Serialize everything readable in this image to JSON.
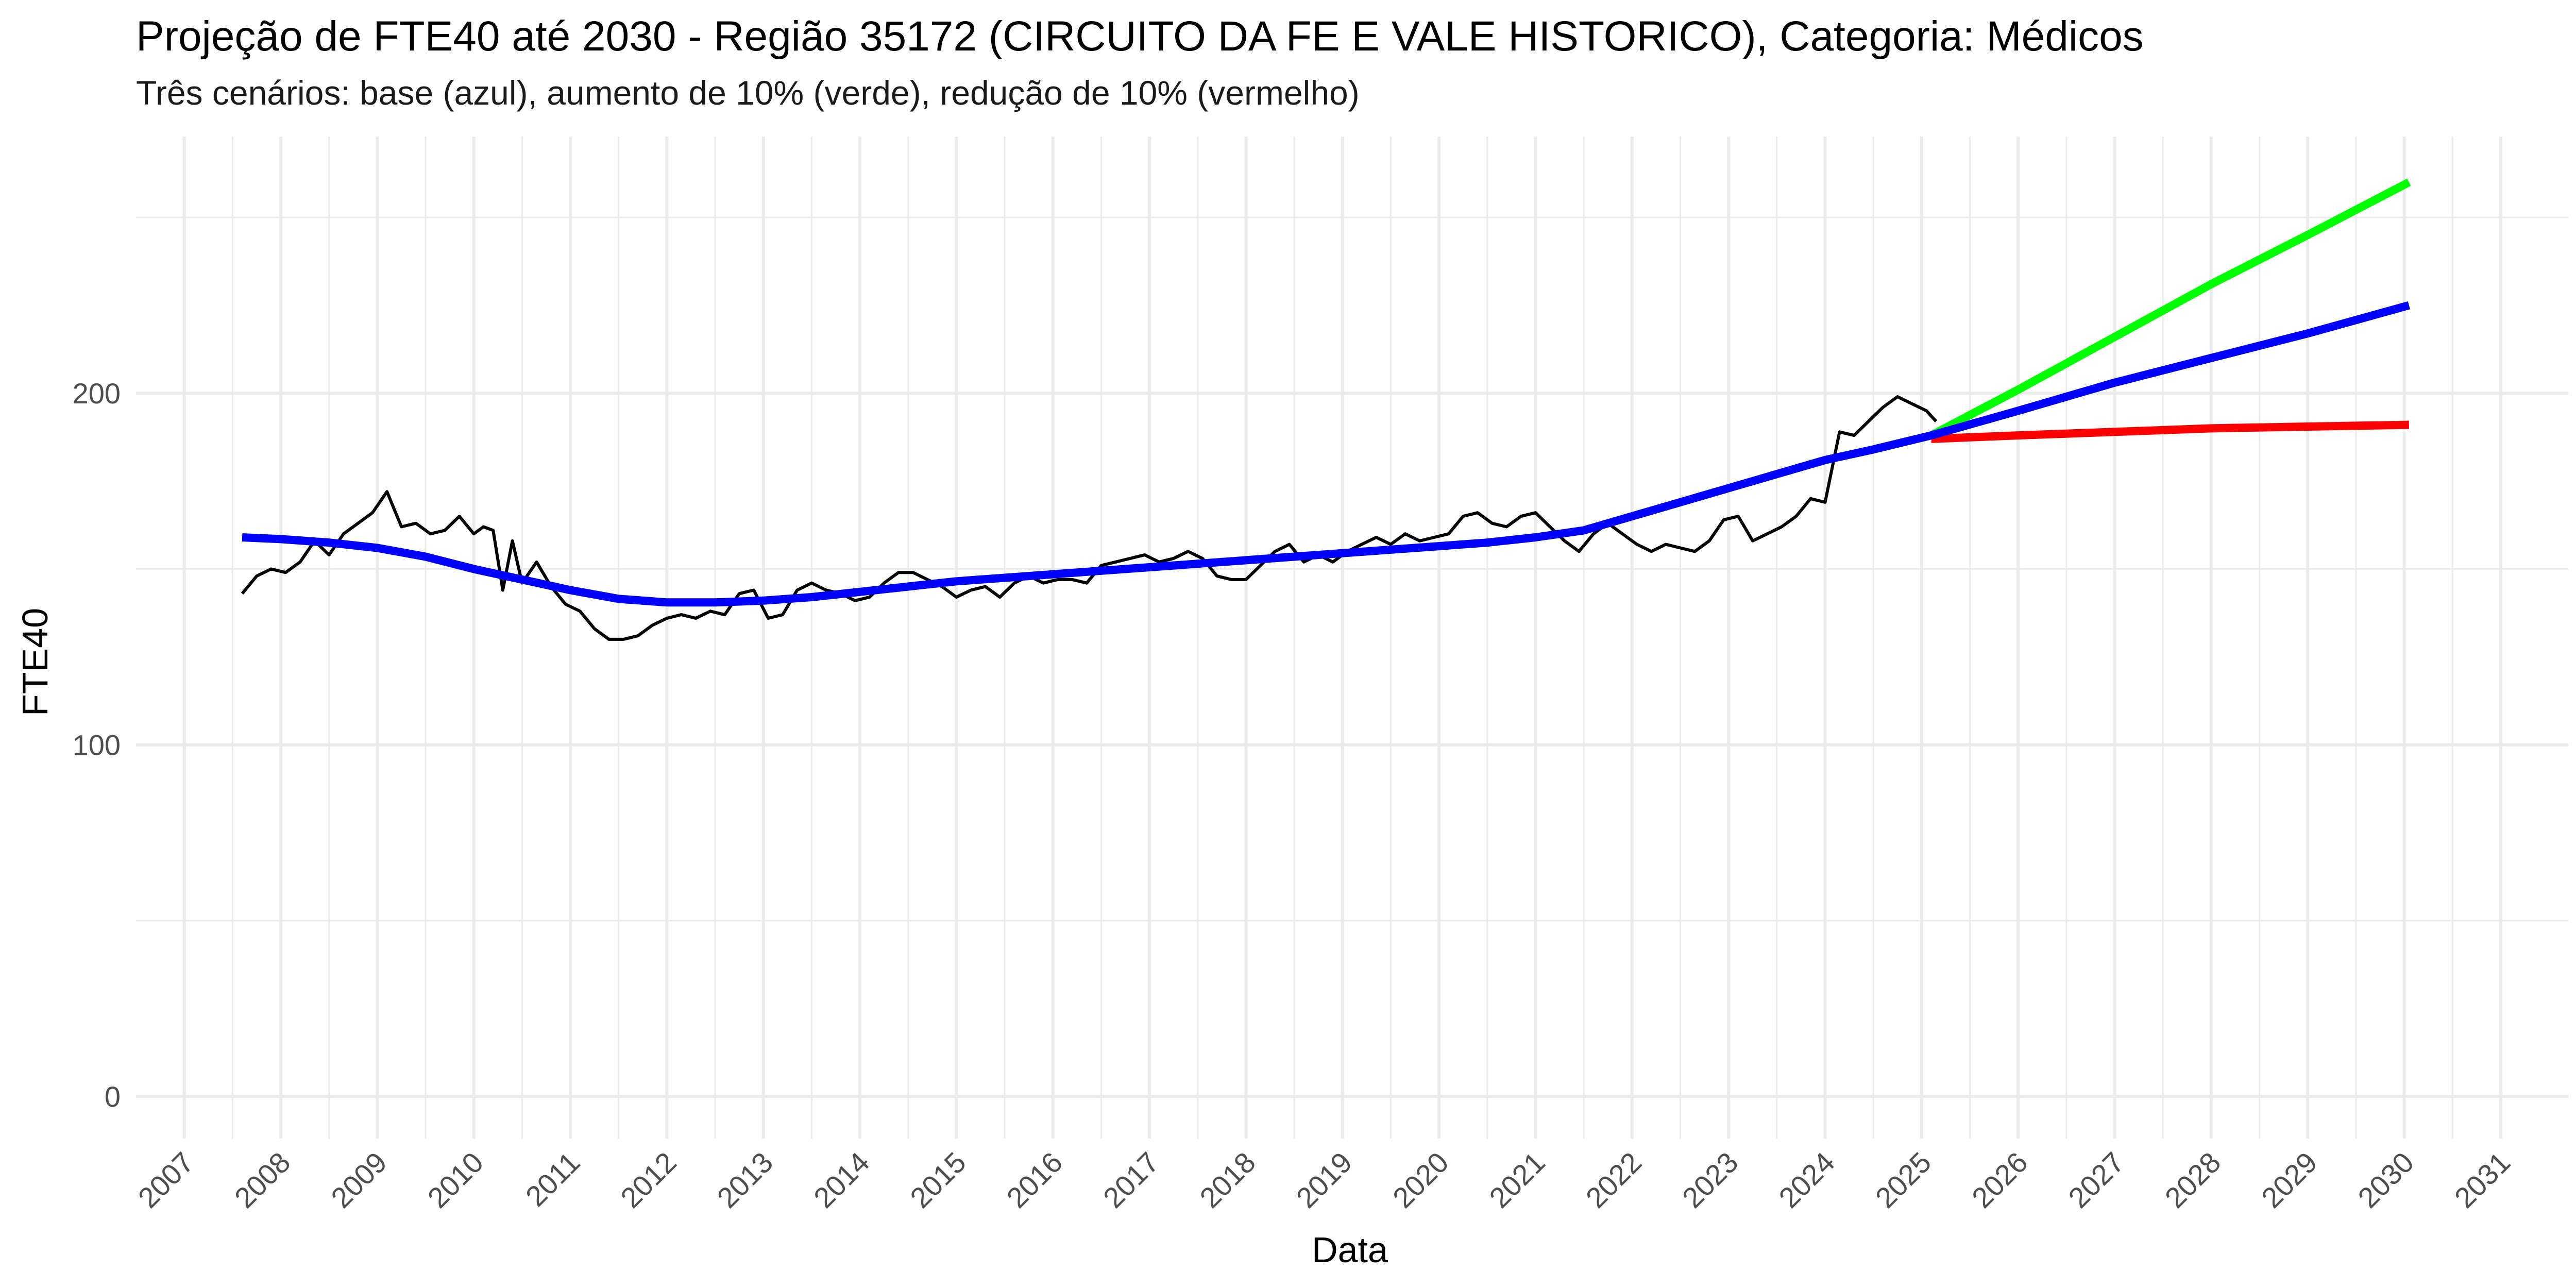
{
  "chart_data": {
    "type": "line",
    "title": "Projeção de FTE40 até 2030 - Região 35172 (CIRCUITO DA FE E VALE HISTORICO), Categoria: Médicos",
    "subtitle": "Três cenários: base (azul), aumento de 10% (verde), redução de 10% (vermelho)",
    "xlabel": "Data",
    "ylabel": "FTE40",
    "x_ticks": [
      "2007",
      "2008",
      "2009",
      "2010",
      "2011",
      "2012",
      "2013",
      "2014",
      "2015",
      "2016",
      "2017",
      "2018",
      "2019",
      "2020",
      "2021",
      "2022",
      "2023",
      "2024",
      "2025",
      "2026",
      "2027",
      "2028",
      "2029",
      "2030",
      "2031"
    ],
    "y_ticks": [
      0,
      100,
      200
    ],
    "xlim": [
      2006.5,
      2031.7
    ],
    "ylim": [
      -12,
      273
    ],
    "grid": true,
    "colors": {
      "observed": "#000000",
      "base": "#0000ff",
      "increase": "#00ff00",
      "decrease": "#ff0000",
      "grid": "#ebebeb"
    },
    "series": [
      {
        "role": "observed",
        "x": [
          2007.6,
          2007.75,
          2007.9,
          2008.05,
          2008.2,
          2008.35,
          2008.5,
          2008.65,
          2008.8,
          2008.95,
          2009.1,
          2009.25,
          2009.4,
          2009.55,
          2009.7,
          2009.85,
          2010.0,
          2010.1,
          2010.2,
          2010.3,
          2010.4,
          2010.5,
          2010.65,
          2010.8,
          2010.95,
          2011.1,
          2011.25,
          2011.4,
          2011.55,
          2011.7,
          2011.85,
          2012.0,
          2012.15,
          2012.3,
          2012.45,
          2012.6,
          2012.75,
          2012.9,
          2013.05,
          2013.2,
          2013.35,
          2013.5,
          2013.65,
          2013.8,
          2013.95,
          2014.1,
          2014.25,
          2014.4,
          2014.55,
          2014.7,
          2014.85,
          2015.0,
          2015.15,
          2015.3,
          2015.45,
          2015.6,
          2015.75,
          2015.9,
          2016.05,
          2016.2,
          2016.35,
          2016.5,
          2016.65,
          2016.8,
          2016.95,
          2017.1,
          2017.25,
          2017.4,
          2017.55,
          2017.7,
          2017.85,
          2018.0,
          2018.15,
          2018.3,
          2018.45,
          2018.6,
          2018.75,
          2018.9,
          2019.05,
          2019.2,
          2019.35,
          2019.5,
          2019.65,
          2019.8,
          2019.95,
          2020.1,
          2020.25,
          2020.4,
          2020.55,
          2020.7,
          2020.85,
          2021.0,
          2021.15,
          2021.3,
          2021.45,
          2021.6,
          2021.75,
          2021.9,
          2022.05,
          2022.2,
          2022.35,
          2022.5,
          2022.65,
          2022.8,
          2022.95,
          2023.1,
          2023.25,
          2023.4,
          2023.55,
          2023.7,
          2023.85,
          2024.0,
          2024.15,
          2024.3,
          2024.45,
          2024.6,
          2024.75,
          2024.9,
          2025.05,
          2025.15
        ],
        "y": [
          143,
          148,
          150,
          149,
          152,
          158,
          154,
          160,
          163,
          166,
          172,
          162,
          163,
          160,
          161,
          165,
          160,
          162,
          161,
          144,
          158,
          146,
          152,
          145,
          140,
          138,
          133,
          130,
          130,
          131,
          134,
          136,
          137,
          136,
          138,
          137,
          143,
          144,
          136,
          137,
          144,
          146,
          144,
          143,
          141,
          142,
          146,
          149,
          149,
          147,
          145,
          142,
          144,
          145,
          142,
          146,
          148,
          146,
          147,
          147,
          146,
          151,
          152,
          153,
          154,
          152,
          153,
          155,
          153,
          148,
          147,
          147,
          151,
          155,
          157,
          152,
          154,
          152,
          155,
          157,
          159,
          157,
          160,
          158,
          159,
          160,
          165,
          166,
          163,
          162,
          165,
          166,
          162,
          158,
          155,
          160,
          163,
          160,
          157,
          155,
          157,
          156,
          155,
          158,
          164,
          165,
          158,
          160,
          162,
          165,
          170,
          169,
          189,
          188,
          192,
          196,
          199,
          197,
          195,
          192
        ],
        "name": ""
      },
      {
        "role": "base",
        "x": [
          2007.6,
          2008.0,
          2008.5,
          2009.0,
          2009.5,
          2010.0,
          2010.5,
          2011.0,
          2011.5,
          2012.0,
          2012.5,
          2013.0,
          2013.5,
          2014.0,
          2014.5,
          2015.0,
          2015.5,
          2016.0,
          2016.5,
          2017.0,
          2017.5,
          2018.0,
          2018.5,
          2019.0,
          2019.5,
          2020.0,
          2020.5,
          2021.0,
          2021.5,
          2022.0,
          2022.5,
          2023.0,
          2023.5,
          2024.0,
          2024.5,
          2025.1,
          2026.0,
          2027.0,
          2028.0,
          2029.0,
          2030.05
        ],
        "y": [
          159,
          158.5,
          157.5,
          156,
          153.5,
          150,
          147,
          144,
          141.5,
          140.5,
          140.5,
          141,
          142,
          143.5,
          145,
          146.5,
          147.5,
          148.5,
          149.5,
          150.5,
          151.5,
          152.5,
          153.5,
          154.5,
          155.5,
          156.5,
          157.5,
          159,
          161,
          165,
          169,
          173,
          177,
          181,
          184,
          188,
          195,
          203,
          210,
          217,
          225
        ],
        "name": ""
      },
      {
        "role": "increase",
        "x": [
          2025.1,
          2026.0,
          2027.0,
          2028.0,
          2029.0,
          2030.05
        ],
        "y": [
          188,
          201,
          216,
          231,
          245,
          260
        ],
        "name": ""
      },
      {
        "role": "decrease",
        "x": [
          2025.1,
          2026.0,
          2027.0,
          2028.0,
          2029.0,
          2030.05
        ],
        "y": [
          187,
          188,
          189,
          190,
          190.5,
          191
        ],
        "name": ""
      }
    ]
  }
}
